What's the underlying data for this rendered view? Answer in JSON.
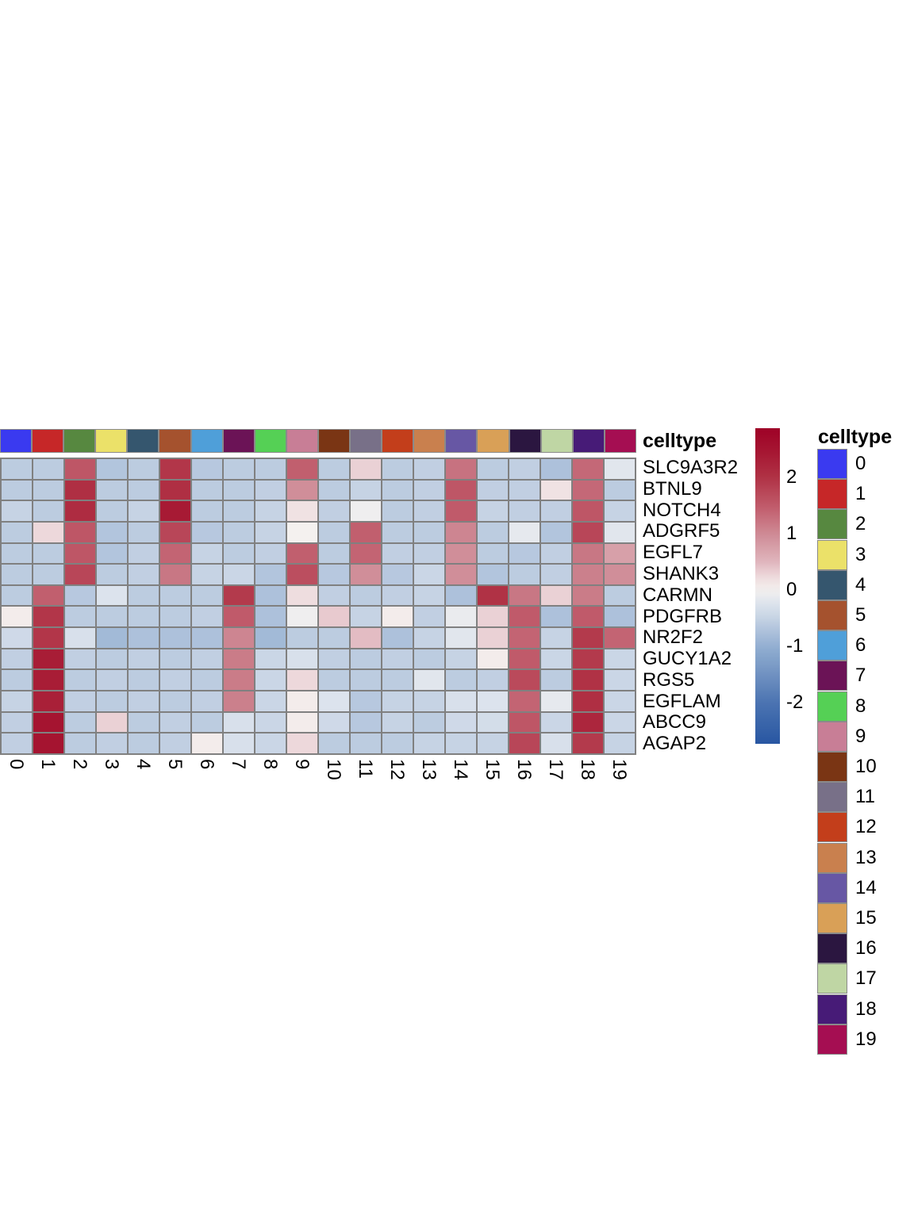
{
  "annotation_bar": {
    "label": "celltype"
  },
  "legend": {
    "title": "celltype",
    "items": [
      {
        "label": "0",
        "color": "#3A3AF0"
      },
      {
        "label": "1",
        "color": "#C62728"
      },
      {
        "label": "2",
        "color": "#578840"
      },
      {
        "label": "3",
        "color": "#EBE169"
      },
      {
        "label": "4",
        "color": "#35566E"
      },
      {
        "label": "5",
        "color": "#A5522E"
      },
      {
        "label": "6",
        "color": "#4F9FD9"
      },
      {
        "label": "7",
        "color": "#6B1356"
      },
      {
        "label": "8",
        "color": "#55D055"
      },
      {
        "label": "9",
        "color": "#C87E96"
      },
      {
        "label": "10",
        "color": "#7A3514"
      },
      {
        "label": "11",
        "color": "#787088"
      },
      {
        "label": "12",
        "color": "#C33E1B"
      },
      {
        "label": "13",
        "color": "#C9804E"
      },
      {
        "label": "14",
        "color": "#6757A4"
      },
      {
        "label": "15",
        "color": "#D9A057"
      },
      {
        "label": "16",
        "color": "#2B1640"
      },
      {
        "label": "17",
        "color": "#BFD6A4"
      },
      {
        "label": "18",
        "color": "#471B77"
      },
      {
        "label": "19",
        "color": "#A50E52"
      }
    ]
  },
  "chart_data": {
    "type": "heatmap",
    "rows": [
      "SLC9A3R2",
      "BTNL9",
      "NOTCH4",
      "ADGRF5",
      "EGFL7",
      "SHANK3",
      "CARMN",
      "PDGFRB",
      "NR2F2",
      "GUCY1A2",
      "RGS5",
      "EGFLAM",
      "ABCC9",
      "AGAP2"
    ],
    "columns": [
      "0",
      "1",
      "2",
      "3",
      "4",
      "5",
      "6",
      "7",
      "8",
      "9",
      "10",
      "11",
      "12",
      "13",
      "14",
      "15",
      "16",
      "17",
      "18",
      "19"
    ],
    "values": [
      [
        -0.6,
        -0.6,
        1.55,
        -0.7,
        -0.6,
        1.95,
        -0.65,
        -0.6,
        -0.6,
        1.45,
        -0.6,
        0.3,
        -0.6,
        -0.55,
        1.25,
        -0.6,
        -0.55,
        -0.75,
        1.35,
        -0.2
      ],
      [
        -0.6,
        -0.6,
        2.05,
        -0.6,
        -0.6,
        2.05,
        -0.6,
        -0.6,
        -0.55,
        0.95,
        -0.6,
        -0.5,
        -0.6,
        -0.55,
        1.55,
        -0.55,
        -0.55,
        0.15,
        1.35,
        -0.6
      ],
      [
        -0.5,
        -0.6,
        2.1,
        -0.6,
        -0.5,
        2.4,
        -0.6,
        -0.6,
        -0.5,
        0.15,
        -0.55,
        -0.05,
        -0.6,
        -0.55,
        1.5,
        -0.5,
        -0.55,
        -0.55,
        1.55,
        -0.5
      ],
      [
        -0.6,
        0.25,
        1.55,
        -0.7,
        -0.6,
        1.75,
        -0.65,
        -0.6,
        -0.5,
        0.0,
        -0.6,
        1.45,
        -0.6,
        -0.6,
        1.05,
        -0.6,
        -0.15,
        -0.7,
        1.75,
        -0.2
      ],
      [
        -0.6,
        -0.6,
        1.55,
        -0.7,
        -0.55,
        1.4,
        -0.5,
        -0.6,
        -0.55,
        1.45,
        -0.6,
        1.4,
        -0.55,
        -0.55,
        0.95,
        -0.6,
        -0.65,
        -0.55,
        1.2,
        0.75
      ],
      [
        -0.6,
        -0.6,
        1.75,
        -0.6,
        -0.55,
        1.2,
        -0.5,
        -0.45,
        -0.7,
        1.65,
        -0.65,
        0.95,
        -0.65,
        -0.45,
        0.95,
        -0.7,
        -0.6,
        -0.55,
        1.1,
        0.95
      ],
      [
        -0.6,
        1.45,
        -0.65,
        -0.25,
        -0.6,
        -0.6,
        -0.6,
        1.9,
        -0.75,
        0.2,
        -0.55,
        -0.6,
        -0.55,
        -0.5,
        -0.75,
        2.0,
        1.2,
        0.3,
        1.15,
        -0.6
      ],
      [
        0.05,
        1.95,
        -0.6,
        -0.6,
        -0.6,
        -0.6,
        -0.55,
        1.5,
        -0.75,
        -0.05,
        0.35,
        -0.5,
        0.05,
        -0.55,
        -0.1,
        0.3,
        1.5,
        -0.75,
        1.5,
        -0.75
      ],
      [
        -0.4,
        1.95,
        -0.3,
        -0.85,
        -0.75,
        -0.75,
        -0.75,
        1.05,
        -0.85,
        -0.6,
        -0.6,
        0.45,
        -0.75,
        -0.5,
        -0.2,
        0.3,
        1.4,
        -0.5,
        1.9,
        1.4
      ],
      [
        -0.55,
        2.35,
        -0.55,
        -0.6,
        -0.55,
        -0.6,
        -0.55,
        1.15,
        -0.45,
        -0.3,
        -0.55,
        -0.6,
        -0.55,
        -0.6,
        -0.5,
        0.05,
        1.5,
        -0.45,
        1.9,
        -0.45
      ],
      [
        -0.6,
        2.35,
        -0.6,
        -0.55,
        -0.6,
        -0.55,
        -0.6,
        1.15,
        -0.45,
        0.25,
        -0.6,
        -0.6,
        -0.6,
        -0.2,
        -0.6,
        -0.55,
        1.7,
        -0.6,
        2.0,
        -0.45
      ],
      [
        -0.5,
        2.3,
        -0.55,
        -0.6,
        -0.55,
        -0.6,
        -0.55,
        1.1,
        -0.45,
        0.05,
        -0.25,
        -0.65,
        -0.5,
        -0.5,
        -0.3,
        -0.25,
        1.4,
        -0.15,
        2.05,
        -0.45
      ],
      [
        -0.55,
        2.5,
        -0.6,
        0.3,
        -0.6,
        -0.55,
        -0.6,
        -0.3,
        -0.45,
        0.05,
        -0.4,
        -0.65,
        -0.5,
        -0.6,
        -0.4,
        -0.35,
        1.55,
        -0.45,
        2.2,
        -0.45
      ],
      [
        -0.55,
        2.5,
        -0.6,
        -0.55,
        -0.6,
        -0.55,
        0.05,
        -0.3,
        -0.45,
        0.25,
        -0.6,
        -0.6,
        -0.6,
        -0.5,
        -0.5,
        -0.5,
        1.75,
        -0.3,
        1.9,
        -0.5
      ]
    ],
    "column_annotation": {
      "name": "celltype",
      "categories": [
        "0",
        "1",
        "2",
        "3",
        "4",
        "5",
        "6",
        "7",
        "8",
        "9",
        "10",
        "11",
        "12",
        "13",
        "14",
        "15",
        "16",
        "17",
        "18",
        "19"
      ],
      "colors": [
        "#3A3AF0",
        "#C62728",
        "#578840",
        "#EBE169",
        "#35566E",
        "#A5522E",
        "#4F9FD9",
        "#6B1356",
        "#55D055",
        "#C87E96",
        "#7A3514",
        "#787088",
        "#C33E1B",
        "#C9804E",
        "#6757A4",
        "#D9A057",
        "#2B1640",
        "#BFD6A4",
        "#471B77",
        "#A50E52"
      ],
      "position": "top"
    },
    "colorbar": {
      "ticks": [
        2,
        1,
        0,
        -1,
        -2
      ],
      "domain_top": 2.88,
      "domain_bottom": -2.74
    },
    "colormap_stops": [
      [
        -2.9,
        "#20509F"
      ],
      [
        -2.0,
        "#4C74B2"
      ],
      [
        -1.5,
        "#7092C1"
      ],
      [
        -1.0,
        "#93AFD2"
      ],
      [
        -0.5,
        "#C6D3E4"
      ],
      [
        -0.25,
        "#DCE3ED"
      ],
      [
        0.0,
        "#F4F1EF"
      ],
      [
        0.25,
        "#EDD8DB"
      ],
      [
        0.5,
        "#E0B5BD"
      ],
      [
        1.0,
        "#CE8A95"
      ],
      [
        1.5,
        "#C05A6A"
      ],
      [
        2.0,
        "#B03245"
      ],
      [
        2.5,
        "#A51430"
      ],
      [
        2.9,
        "#9E0026"
      ]
    ],
    "legend": {
      "title": "celltype"
    },
    "grid": true,
    "row_label_side": "right",
    "column_label_rotation_deg": 90
  }
}
